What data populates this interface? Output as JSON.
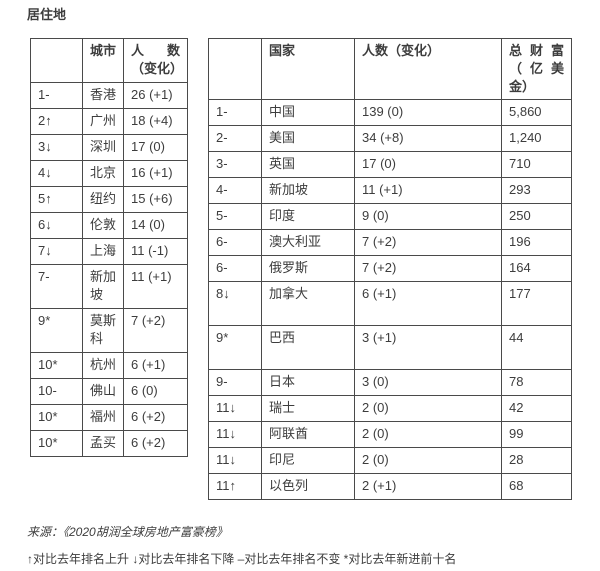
{
  "page": {
    "title": "居住地",
    "source": "来源：《2020胡润全球房地产富豪榜》",
    "footnote": "↑对比去年排名上升 ↓对比去年排名下降 –对比去年排名不变 *对比去年新进前十名",
    "text_color": "#3d3d3d",
    "border_color": "#4a4a4a"
  },
  "city_table": {
    "headers": [
      "",
      "城市",
      "人数（变化）"
    ],
    "rows": [
      {
        "rank": "1-",
        "name": "香港",
        "count": "26 (+1)"
      },
      {
        "rank": "2↑",
        "name": "广州",
        "count": "18 (+4)"
      },
      {
        "rank": "3↓",
        "name": "深圳",
        "count": "17 (0)"
      },
      {
        "rank": "4↓",
        "name": "北京",
        "count": "16 (+1)"
      },
      {
        "rank": "5↑",
        "name": "纽约",
        "count": "15 (+6)"
      },
      {
        "rank": "6↓",
        "name": "伦敦",
        "count": "14 (0)"
      },
      {
        "rank": "7↓",
        "name": "上海",
        "count": "11 (-1)"
      },
      {
        "rank": "7-",
        "name": "新加坡",
        "count": "11 (+1)"
      },
      {
        "rank": "9*",
        "name": "莫斯科",
        "count": "7 (+2)"
      },
      {
        "rank": "10*",
        "name": "杭州",
        "count": "6 (+1)"
      },
      {
        "rank": "10-",
        "name": "佛山",
        "count": "6 (0)"
      },
      {
        "rank": "10*",
        "name": "福州",
        "count": "6 (+2)"
      },
      {
        "rank": "10*",
        "name": "孟买",
        "count": "6 (+2)"
      }
    ]
  },
  "country_table": {
    "headers": [
      "",
      "国家",
      "人数（变化）",
      "总财富（亿美金）"
    ],
    "rows": [
      {
        "rank": "1-",
        "name": "中国",
        "count": "139 (0)",
        "wealth": "5,860"
      },
      {
        "rank": "2-",
        "name": "美国",
        "count": "34 (+8)",
        "wealth": "1,240"
      },
      {
        "rank": "3-",
        "name": "英国",
        "count": "17 (0)",
        "wealth": "710"
      },
      {
        "rank": "4-",
        "name": "新加坡",
        "count": "11 (+1)",
        "wealth": "293"
      },
      {
        "rank": "5-",
        "name": "印度",
        "count": "9 (0)",
        "wealth": "250"
      },
      {
        "rank": "6-",
        "name": "澳大利亚",
        "count": "7 (+2)",
        "wealth": "196"
      },
      {
        "rank": "6-",
        "name": "俄罗斯",
        "count": "7 (+2)",
        "wealth": "164"
      },
      {
        "rank": "8↓",
        "name": "加拿大",
        "count": "6 (+1)",
        "wealth": "177"
      },
      {
        "rank": "9*",
        "name": "巴西",
        "count": "3 (+1)",
        "wealth": "44"
      },
      {
        "rank": "9-",
        "name": "日本",
        "count": "3 (0)",
        "wealth": "78"
      },
      {
        "rank": "11↓",
        "name": "瑞士",
        "count": "2 (0)",
        "wealth": "42"
      },
      {
        "rank": "11↓",
        "name": "阿联酋",
        "count": "2 (0)",
        "wealth": "99"
      },
      {
        "rank": "11↓",
        "name": "印尼",
        "count": "2 (0)",
        "wealth": "28"
      },
      {
        "rank": "11↑",
        "name": "以色列",
        "count": "2 (+1)",
        "wealth": "68"
      }
    ]
  }
}
